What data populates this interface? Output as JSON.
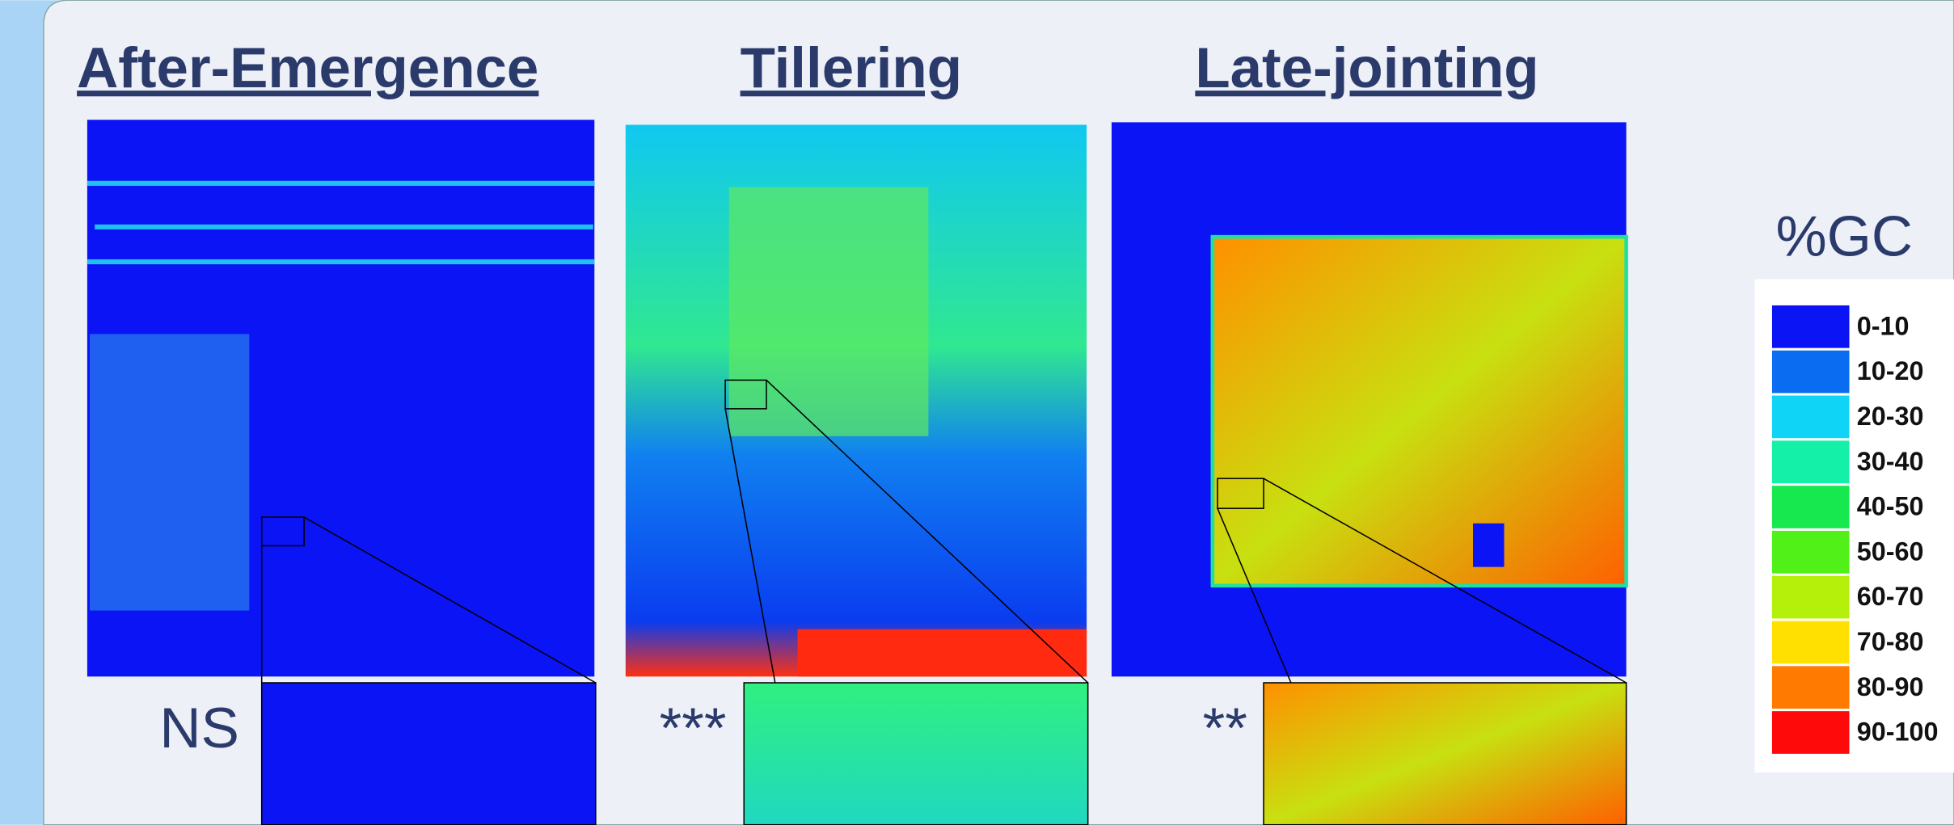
{
  "panels": [
    {
      "title": "After-Emergence",
      "significance": "NS"
    },
    {
      "title": "Tillering",
      "significance": "***"
    },
    {
      "title": "Late-jointing",
      "significance": "**"
    }
  ],
  "legend": {
    "title": "%GC",
    "items": [
      {
        "label": "0-10",
        "color": "#0a14f5"
      },
      {
        "label": "10-20",
        "color": "#0a6cf0"
      },
      {
        "label": "20-30",
        "color": "#10d4f5"
      },
      {
        "label": "30-40",
        "color": "#14f0a8"
      },
      {
        "label": "40-50",
        "color": "#18e850"
      },
      {
        "label": "50-60",
        "color": "#50f018"
      },
      {
        "label": "60-70",
        "color": "#b4f00a"
      },
      {
        "label": "70-80",
        "color": "#ffe000"
      },
      {
        "label": "80-90",
        "color": "#ff7a00"
      },
      {
        "label": "90-100",
        "color": "#ff0a0a"
      }
    ]
  }
}
